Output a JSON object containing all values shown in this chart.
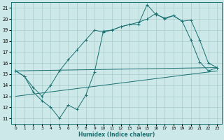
{
  "xlabel": "Humidex (Indice chaleur)",
  "xlim": [
    -0.5,
    23.5
  ],
  "ylim": [
    10.5,
    21.5
  ],
  "yticks": [
    11,
    12,
    13,
    14,
    15,
    16,
    17,
    18,
    19,
    20,
    21
  ],
  "xticks": [
    0,
    1,
    2,
    3,
    4,
    5,
    6,
    7,
    8,
    9,
    10,
    11,
    12,
    13,
    14,
    15,
    16,
    17,
    18,
    19,
    20,
    21,
    22,
    23
  ],
  "bg_color": "#cce8e8",
  "grid_color": "#aacccc",
  "line_color": "#1a7070",
  "series": [
    {
      "x": [
        0,
        1,
        2,
        3,
        4,
        5,
        6,
        7,
        8,
        9,
        10,
        11,
        12,
        13,
        14,
        15,
        16,
        17,
        18,
        19,
        20,
        21,
        22,
        23
      ],
      "y": [
        15.3,
        14.8,
        13.4,
        12.6,
        12.0,
        11.0,
        12.2,
        11.8,
        13.1,
        15.2,
        18.9,
        19.0,
        19.3,
        19.5,
        19.5,
        21.3,
        20.4,
        20.1,
        20.3,
        19.8,
        18.1,
        16.1,
        15.3,
        15.6
      ],
      "has_marker": true
    },
    {
      "x": [
        0,
        1,
        2,
        3,
        4,
        5,
        6,
        7,
        8,
        9,
        10,
        11,
        12,
        13,
        14,
        15,
        16,
        17,
        18,
        19,
        20,
        21,
        22,
        23
      ],
      "y": [
        15.3,
        14.8,
        13.8,
        13.0,
        14.0,
        15.3,
        16.3,
        17.2,
        18.1,
        19.0,
        18.8,
        19.0,
        19.3,
        19.5,
        19.7,
        20.0,
        20.5,
        20.0,
        20.3,
        19.8,
        19.9,
        18.1,
        16.0,
        15.6
      ],
      "has_marker": true
    },
    {
      "x": [
        0,
        23
      ],
      "y": [
        15.3,
        15.6
      ],
      "has_marker": false
    },
    {
      "x": [
        0,
        23
      ],
      "y": [
        13.0,
        15.3
      ],
      "has_marker": false
    }
  ]
}
